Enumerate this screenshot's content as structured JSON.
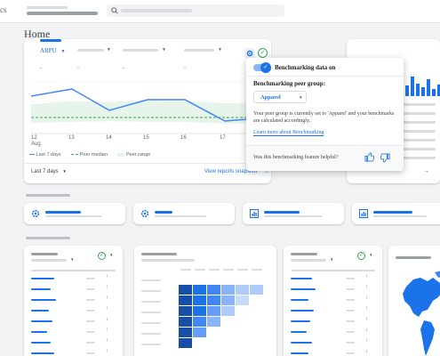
{
  "topbar": {
    "logo_fragment": "cs"
  },
  "page_title": "Home",
  "top_card": {
    "metric": "ARPU",
    "x_labels": [
      "12",
      "13",
      "14",
      "15",
      "16",
      "17"
    ],
    "x_month": "Aug",
    "legend": {
      "series": "Last 7 days",
      "median": "Peer median",
      "range": "Peer range"
    },
    "date_range": "Last 7 days",
    "view_link": "View reports snapshot"
  },
  "popup": {
    "toggle_label": "Benchmarking data on",
    "peer_group_label": "Benchmarking peer group:",
    "selected_group": "Apparel",
    "description": "Your peer group is currently set to 'Apparel' and your benchmarks are calculated accordingly.",
    "learn_more": "Learn more about Benchmarking",
    "feedback_question": "Was this benchmarking feature helpful?"
  },
  "colors": {
    "accent": "#1a73e8",
    "peer_range": "#e6f4ea",
    "peer_median": "#34a853",
    "check": "#34a853"
  },
  "icons": [
    "search-icon",
    "settings-icon",
    "check-icon",
    "thumb-up-icon",
    "thumb-down-icon",
    "bar-chart-icon",
    "arrow-right-icon"
  ]
}
